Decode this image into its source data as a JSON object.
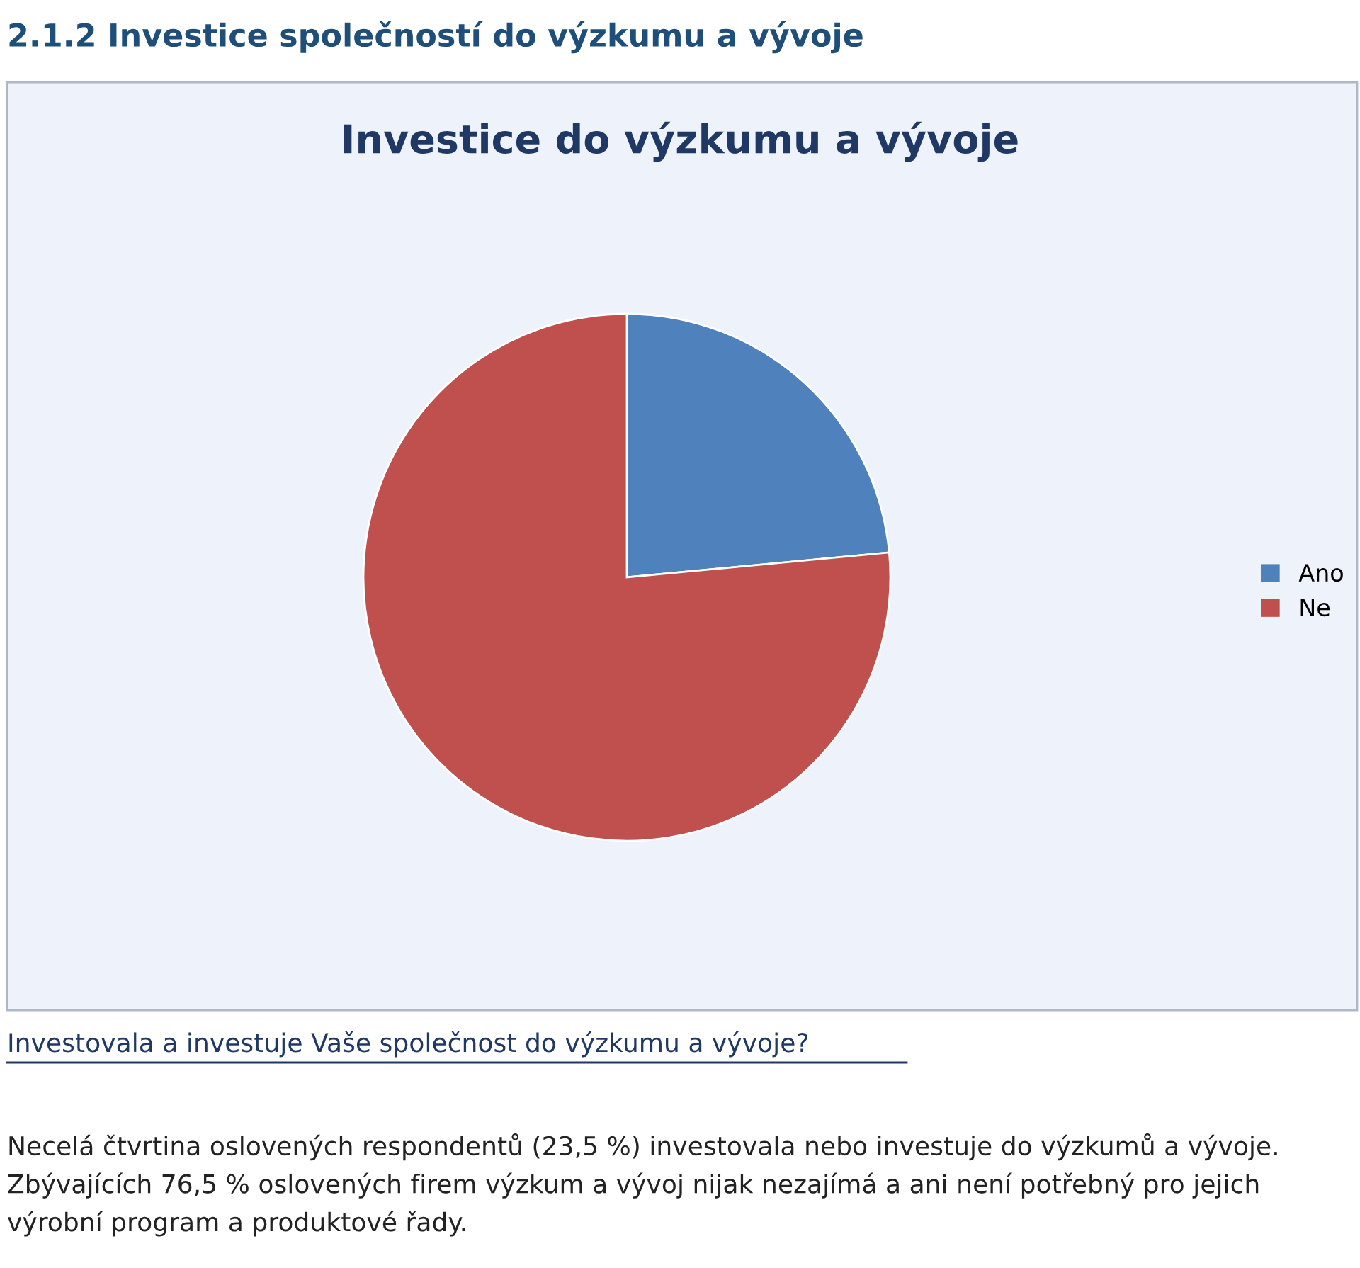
{
  "chart_data": {
    "type": "pie",
    "title": "Investice do výzkumu a vývoje",
    "categories": [
      "Ano",
      "Ne"
    ],
    "values": [
      23.5,
      76.5
    ],
    "colors": [
      "#4f81bd",
      "#c0504d"
    ],
    "legend": "right",
    "annotations": [
      "2.1.2 Investice společností do výzkumu a vývoje",
      "Investovala a investuje Vaše společnost do výzkumu a vývoje?",
      "Necelá čtvrtina oslovených respondentů (23,5 %) investovala nebo investuje do výzkumů a vývoje. Zbývajících 76,5 % oslovených firem výzkum a vývoj nijak nezajímá a ani není potřebný pro jejich výrobní program a produktové řady."
    ]
  }
}
